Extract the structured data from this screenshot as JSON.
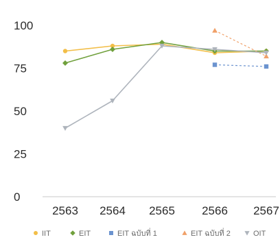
{
  "chart_data": {
    "type": "line",
    "title": "",
    "xlabel": "",
    "ylabel": "",
    "categories": [
      "2563",
      "2564",
      "2565",
      "2566",
      "2567"
    ],
    "y_ticks": [
      "0",
      "25",
      "50",
      "75",
      "100"
    ],
    "ylim": [
      0,
      100
    ],
    "grid": false,
    "legend_position": "bottom",
    "series": [
      {
        "name": "IIT",
        "color": "#f2be48",
        "marker": "circle",
        "values": [
          85,
          88,
          89,
          84,
          85
        ]
      },
      {
        "name": "EIT",
        "color": "#70a03c",
        "marker": "diamond",
        "values": [
          78,
          86,
          90,
          85,
          85
        ]
      },
      {
        "name": "EIT ฉบับที่ 1",
        "color": "#6b93cf",
        "marker": "square",
        "values": [
          null,
          null,
          null,
          77,
          76
        ]
      },
      {
        "name": "EIT ฉบับที่ 2",
        "color": "#f0a068",
        "marker": "triangle",
        "values": [
          null,
          null,
          null,
          97,
          82
        ]
      },
      {
        "name": "OIT",
        "color": "#aeb4bc",
        "marker": "triangle-down",
        "values": [
          40,
          56,
          88,
          86,
          84
        ]
      }
    ]
  }
}
